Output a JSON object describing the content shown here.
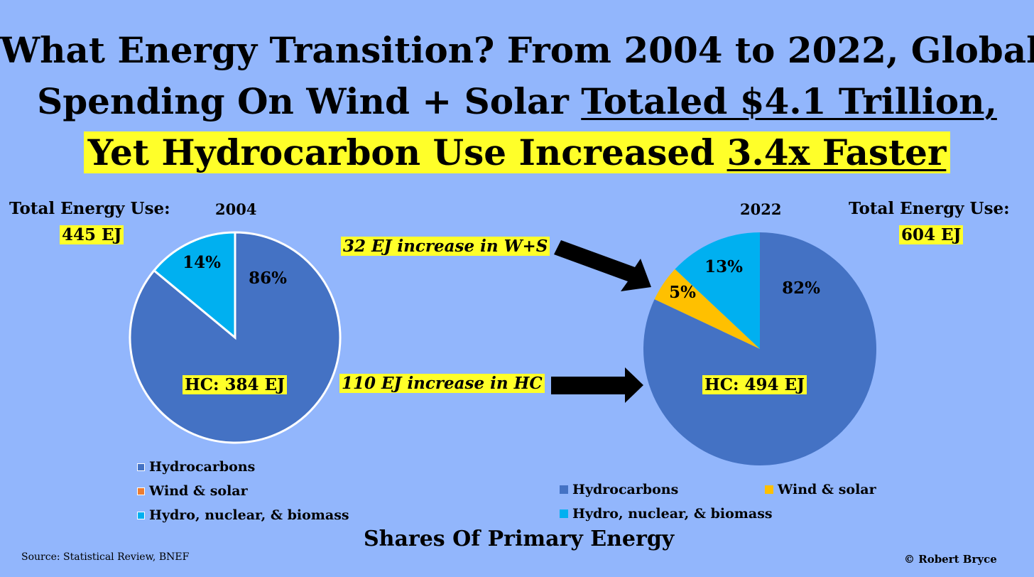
{
  "title": {
    "line1": "What Energy Transition? From 2004 to 2022, Global",
    "line2_plain": "Spending On Wind + Solar ",
    "line2_underlined": "Totaled $4.1 Trillion,",
    "line3_plain": "Yet Hydrocarbon Use Increased ",
    "line3_underlined": "3.4x Faster"
  },
  "left_panel": {
    "total_label": "Total Energy Use:",
    "total_value": "445 EJ",
    "year": "2004",
    "hc_label": "HC: 384 EJ"
  },
  "right_panel": {
    "total_label": "Total Energy Use:",
    "total_value": "604 EJ",
    "year": "2022",
    "hc_label": "HC: 494 EJ"
  },
  "annotations": {
    "ws_increase": "32 EJ increase in W+S",
    "hc_increase": "110 EJ increase in HC"
  },
  "legend": {
    "hydrocarbons": "Hydrocarbons",
    "wind_solar": "Wind & solar",
    "hydro_nuclear": "Hydro, nuclear, & biomass"
  },
  "footer": {
    "subtitle": "Shares Of Primary Energy",
    "source": "Source: Statistical Review, BNEF",
    "copyright": "© Robert Bryce"
  },
  "colors": {
    "background": "#92b6fc",
    "hydrocarbons": "#4472c4",
    "wind_solar": "#ffc000",
    "wind_solar_legend_2004": "#ed7d31",
    "hydro_nuclear": "#00b0f0",
    "highlight": "#ffff29"
  },
  "chart_data": [
    {
      "type": "pie",
      "title": "2004",
      "categories": [
        "Hydrocarbons",
        "Wind & solar",
        "Hydro, nuclear, & biomass"
      ],
      "values": [
        86,
        0,
        14
      ],
      "labels": [
        "86%",
        "",
        "14%"
      ],
      "total": "445 EJ",
      "hc_ej": 384
    },
    {
      "type": "pie",
      "title": "2022",
      "categories": [
        "Hydrocarbons",
        "Wind & solar",
        "Hydro, nuclear, & biomass"
      ],
      "values": [
        82,
        5,
        13
      ],
      "labels": [
        "82%",
        "5%",
        "13%"
      ],
      "total": "604 EJ",
      "hc_ej": 494
    }
  ]
}
